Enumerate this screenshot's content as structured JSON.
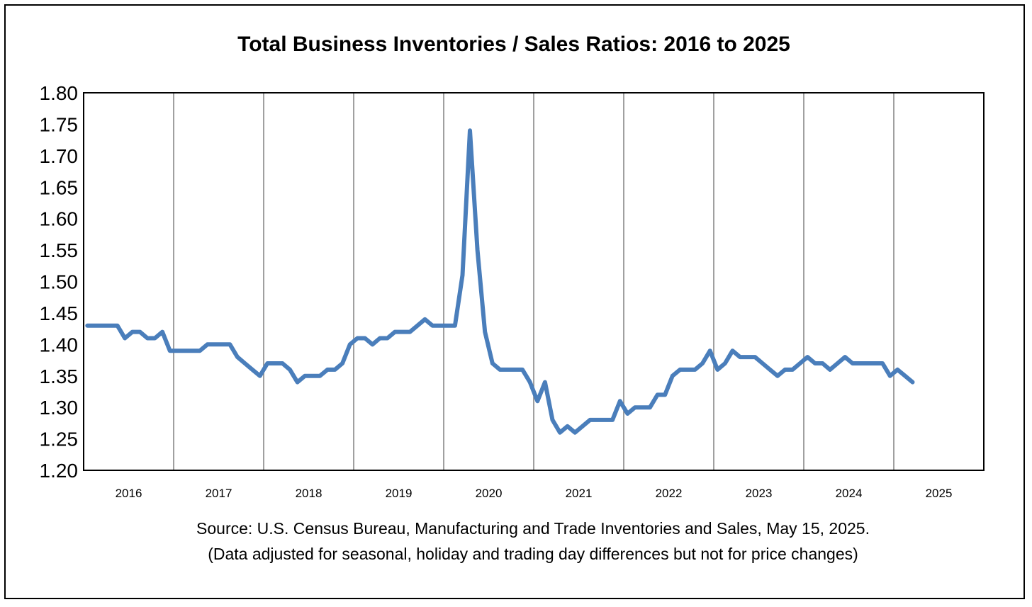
{
  "chart_data": {
    "type": "line",
    "title": "Total Business Inventories / Sales Ratios: 2016 to 2025",
    "xlabel": "",
    "ylabel": "",
    "ylim": [
      1.2,
      1.8
    ],
    "yticks": [
      "1.20",
      "1.25",
      "1.30",
      "1.35",
      "1.40",
      "1.45",
      "1.50",
      "1.55",
      "1.60",
      "1.65",
      "1.70",
      "1.75",
      "1.80"
    ],
    "xticks": [
      "2016",
      "2017",
      "2018",
      "2019",
      "2020",
      "2021",
      "2022",
      "2023",
      "2024",
      "2025"
    ],
    "grid": "vertical",
    "line_color": "#4a7ebb",
    "series": [
      {
        "name": "Inventories/Sales Ratio",
        "start": "2016-01",
        "values": [
          1.43,
          1.43,
          1.43,
          1.43,
          1.43,
          1.41,
          1.42,
          1.42,
          1.41,
          1.41,
          1.42,
          1.39,
          1.39,
          1.39,
          1.39,
          1.39,
          1.4,
          1.4,
          1.4,
          1.4,
          1.38,
          1.37,
          1.36,
          1.35,
          1.37,
          1.37,
          1.37,
          1.36,
          1.34,
          1.35,
          1.35,
          1.35,
          1.36,
          1.36,
          1.37,
          1.4,
          1.41,
          1.41,
          1.4,
          1.41,
          1.41,
          1.42,
          1.42,
          1.42,
          1.43,
          1.44,
          1.43,
          1.43,
          1.43,
          1.43,
          1.51,
          1.74,
          1.55,
          1.42,
          1.37,
          1.36,
          1.36,
          1.36,
          1.36,
          1.34,
          1.31,
          1.34,
          1.28,
          1.26,
          1.27,
          1.26,
          1.27,
          1.28,
          1.28,
          1.28,
          1.28,
          1.31,
          1.29,
          1.3,
          1.3,
          1.3,
          1.32,
          1.32,
          1.35,
          1.36,
          1.36,
          1.36,
          1.37,
          1.39,
          1.36,
          1.37,
          1.39,
          1.38,
          1.38,
          1.38,
          1.37,
          1.36,
          1.35,
          1.36,
          1.36,
          1.37,
          1.38,
          1.37,
          1.37,
          1.36,
          1.37,
          1.38,
          1.37,
          1.37,
          1.37,
          1.37,
          1.37,
          1.35,
          1.36,
          1.35,
          1.34
        ]
      }
    ],
    "source_lines": [
      "Source: U.S. Census Bureau, Manufacturing and Trade Inventories and Sales, May 15, 2025.",
      "(Data adjusted for seasonal, holiday and trading day differences but not for price changes)"
    ]
  }
}
